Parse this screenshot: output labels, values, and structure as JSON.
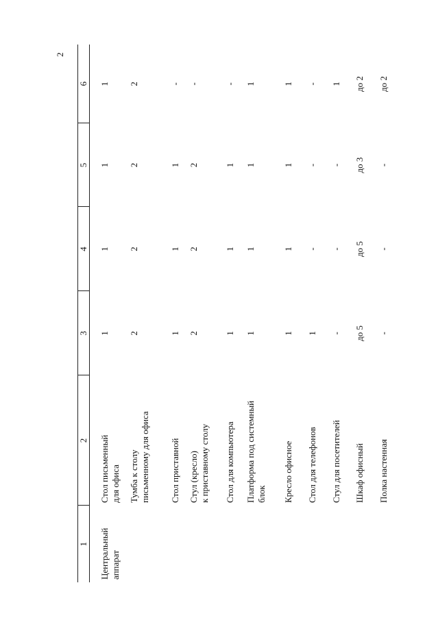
{
  "page_number": "2",
  "table": {
    "header": [
      "1",
      "2",
      "3",
      "4",
      "5",
      "6"
    ],
    "rows": [
      [
        "Центральный\nаппарат",
        "Стол письменный\nдля офиса",
        "1",
        "1",
        "1",
        "1"
      ],
      [
        "",
        "Тумба к столу\nписьменному для офиса",
        "2",
        "2",
        "2",
        "2"
      ],
      [
        "",
        "Стол приставной",
        "1",
        "1",
        "1",
        "-"
      ],
      [
        "",
        "Стул (кресло)\nк приставному столу",
        "2",
        "2",
        "2",
        "-"
      ],
      [
        "",
        "Стол для компьютера",
        "1",
        "1",
        "1",
        "-"
      ],
      [
        "",
        "Платформа под системный\nблок",
        "1",
        "1",
        "1",
        "1"
      ],
      [
        "",
        "Кресло офисное",
        "1",
        "1",
        "1",
        "1"
      ],
      [
        "",
        "Стол для телефонов",
        "1",
        "-",
        "-",
        "-"
      ],
      [
        "",
        "Стул для посетителей",
        "-",
        "-",
        "-",
        "1"
      ],
      [
        "",
        "Шкаф офисный",
        "до 5",
        "до 5",
        "до 3",
        "до 2"
      ],
      [
        "",
        "Полка настенная",
        "-",
        "-",
        "-",
        "до 2"
      ]
    ]
  }
}
